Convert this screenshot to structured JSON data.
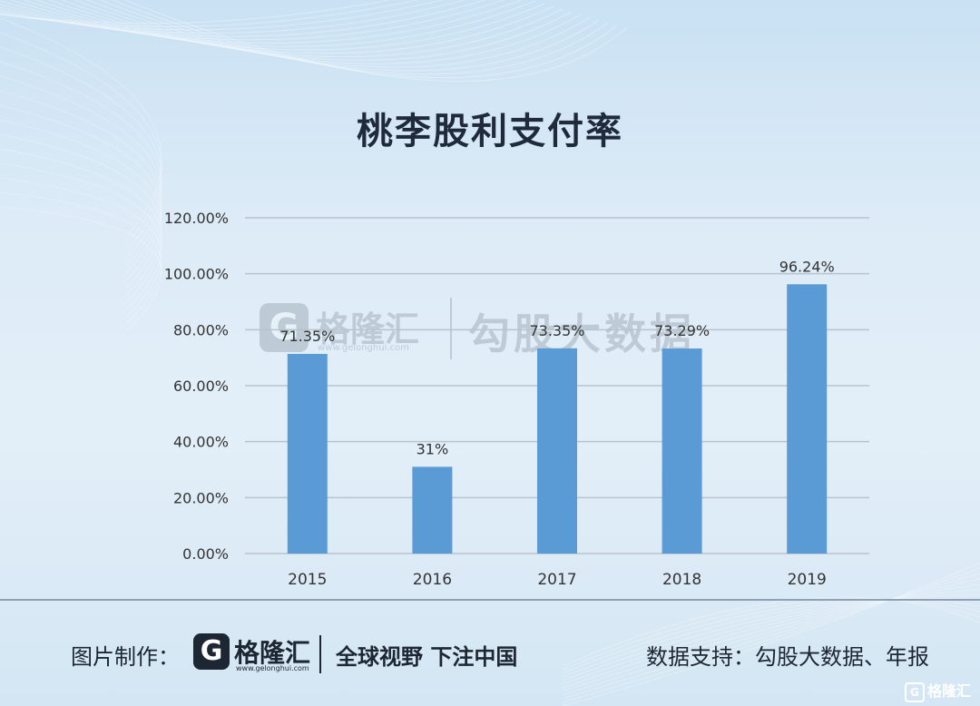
{
  "chart_data": {
    "type": "bar",
    "title": "桃李股利支付率",
    "categories": [
      "2015",
      "2016",
      "2017",
      "2018",
      "2019"
    ],
    "values": [
      71.35,
      31,
      73.35,
      73.29,
      96.24
    ],
    "data_labels": [
      "71.35%",
      "31%",
      "73.35%",
      "73.29%",
      "96.24%"
    ],
    "yticks": [
      "0.00%",
      "20.00%",
      "40.00%",
      "60.00%",
      "80.00%",
      "100.00%",
      "120.00%"
    ],
    "ylim": [
      0,
      120
    ],
    "grid": true,
    "bar_color": "#5b9bd5"
  },
  "watermark": {
    "logo_char": "G",
    "name": "格隆汇",
    "url": "www.gelonghui.com",
    "brand": "勾股大数据"
  },
  "footer": {
    "made_by_label": "图片制作：",
    "logo_char": "G",
    "logo_name": "格隆汇",
    "logo_url": "www.gelonghui.com",
    "slogan": "全球视野 下注中国",
    "data_support": "数据支持：勾股大数据、年报",
    "corner_logo_char": "G",
    "corner_logo_name": "格隆汇"
  }
}
